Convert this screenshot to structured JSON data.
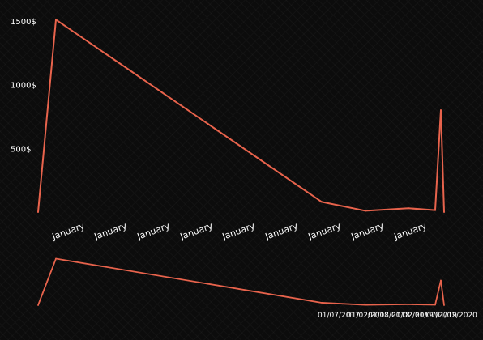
{
  "chart_data": {
    "type": "line",
    "currency_suffix": "$",
    "line_color": "#e8634c",
    "grid": false,
    "main": {
      "y_ticks": [
        {
          "value": 500,
          "label": "500$"
        },
        {
          "value": 1000,
          "label": "1000$"
        },
        {
          "value": 1500,
          "label": "1500$"
        }
      ],
      "ylim": [
        0,
        1550
      ],
      "x_tick_labels": [
        "January",
        "January",
        "January",
        "January",
        "January",
        "January",
        "January",
        "January",
        "January"
      ]
    },
    "navigator": {
      "tick_labels": [
        "01/07/2017",
        "01/02/2018",
        "01/07/2018",
        "01/02/2019",
        "01/07/2019",
        "01/02/2020"
      ]
    },
    "series": [
      {
        "values": [
          0,
          1510,
          80,
          10,
          30,
          15,
          800,
          0
        ]
      }
    ]
  }
}
